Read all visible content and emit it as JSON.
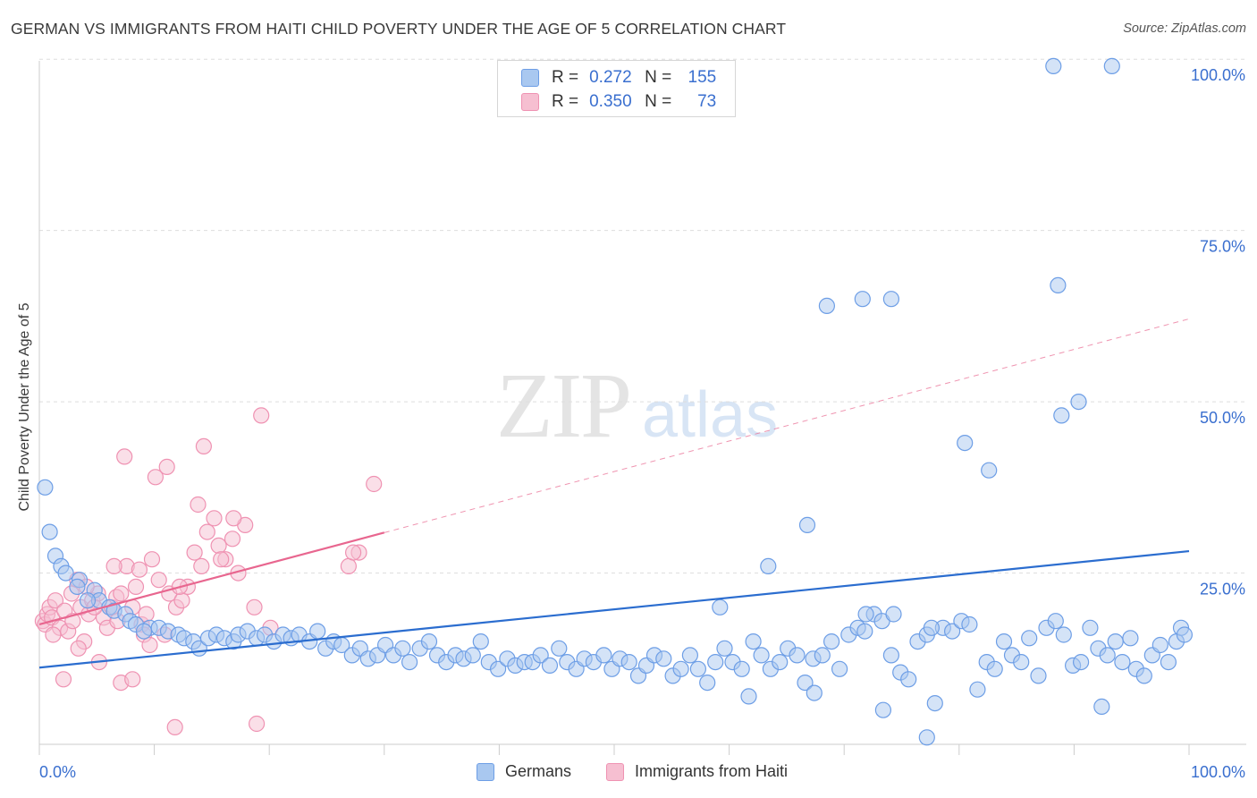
{
  "title": "GERMAN VS IMMIGRANTS FROM HAITI CHILD POVERTY UNDER THE AGE OF 5 CORRELATION CHART",
  "source": "Source: ZipAtlas.com",
  "watermark": {
    "zip": "ZIP",
    "atlas": "atlas"
  },
  "colors": {
    "blue_fill": "#a9c8f0",
    "blue_stroke": "#6d9ee6",
    "blue_line": "#2b6dcf",
    "pink_fill": "#f6bfd1",
    "pink_stroke": "#ef92b2",
    "pink_line": "#e8668f",
    "tick_label": "#3a6fcf",
    "grid": "#dedede"
  },
  "legend_top": {
    "rows": [
      {
        "series": "Germans",
        "r_label": "R =",
        "r_value": "0.272",
        "n_label": "N =",
        "n_value": "155"
      },
      {
        "series": "Immigrants from Haiti",
        "r_label": "R =",
        "r_value": "0.350",
        "n_label": "N =",
        "n_value": "73"
      }
    ]
  },
  "chart_data": {
    "type": "scatter",
    "title": "GERMAN VS IMMIGRANTS FROM HAITI CHILD POVERTY UNDER THE AGE OF 5 CORRELATION CHART",
    "xlabel": "",
    "ylabel": "Child Poverty Under the Age of 5",
    "xlim": [
      0,
      100
    ],
    "ylim": [
      0,
      104
    ],
    "x_tick_labels": [
      "0.0%",
      "100.0%"
    ],
    "y_ticks": [
      25,
      50,
      75,
      100
    ],
    "y_tick_labels": [
      "25.0%",
      "50.0%",
      "75.0%",
      "100.0%"
    ],
    "grid": true,
    "legend_position": "top-center",
    "series": [
      {
        "name": "Germans",
        "color": "#a9c8f0",
        "trendline": {
          "x": [
            0,
            100
          ],
          "y": [
            11.2,
            28.2
          ],
          "style": "solid"
        },
        "points": [
          [
            0.5,
            37.5
          ],
          [
            0.9,
            31
          ],
          [
            1.4,
            27.5
          ],
          [
            1.9,
            26
          ],
          [
            2.3,
            25
          ],
          [
            3.5,
            24
          ],
          [
            3.3,
            23
          ],
          [
            4.8,
            22.5
          ],
          [
            5.2,
            21
          ],
          [
            4.2,
            21
          ],
          [
            6.1,
            20
          ],
          [
            6.5,
            19.5
          ],
          [
            7.5,
            19
          ],
          [
            7.9,
            18
          ],
          [
            8.4,
            17.5
          ],
          [
            9.6,
            17
          ],
          [
            9.1,
            16.5
          ],
          [
            10.4,
            17
          ],
          [
            11.2,
            16.5
          ],
          [
            12.1,
            16
          ],
          [
            12.6,
            15.5
          ],
          [
            13.4,
            15
          ],
          [
            13.9,
            14
          ],
          [
            14.7,
            15.5
          ],
          [
            15.4,
            16
          ],
          [
            16.1,
            15.5
          ],
          [
            16.9,
            15
          ],
          [
            17.3,
            16
          ],
          [
            18.1,
            16.5
          ],
          [
            18.9,
            15.5
          ],
          [
            19.6,
            16
          ],
          [
            20.4,
            15
          ],
          [
            21.2,
            16
          ],
          [
            21.9,
            15.5
          ],
          [
            22.6,
            16
          ],
          [
            23.5,
            15
          ],
          [
            24.2,
            16.5
          ],
          [
            24.9,
            14
          ],
          [
            25.6,
            15
          ],
          [
            26.3,
            14.5
          ],
          [
            27.2,
            13
          ],
          [
            27.9,
            14
          ],
          [
            28.6,
            12.5
          ],
          [
            29.4,
            13
          ],
          [
            30.1,
            14.5
          ],
          [
            30.8,
            13
          ],
          [
            31.6,
            14
          ],
          [
            32.2,
            12
          ],
          [
            33.1,
            14
          ],
          [
            33.9,
            15
          ],
          [
            34.6,
            13
          ],
          [
            35.4,
            12
          ],
          [
            36.2,
            13
          ],
          [
            36.9,
            12.5
          ],
          [
            37.7,
            13
          ],
          [
            38.4,
            15
          ],
          [
            39.1,
            12
          ],
          [
            39.9,
            11
          ],
          [
            40.7,
            12.5
          ],
          [
            41.4,
            11.5
          ],
          [
            42.2,
            12
          ],
          [
            42.9,
            12
          ],
          [
            43.6,
            13
          ],
          [
            44.4,
            11.5
          ],
          [
            45.2,
            14
          ],
          [
            45.9,
            12
          ],
          [
            46.7,
            11
          ],
          [
            47.4,
            12.5
          ],
          [
            48.2,
            12
          ],
          [
            49.1,
            13
          ],
          [
            49.8,
            11
          ],
          [
            50.5,
            12.5
          ],
          [
            51.3,
            12
          ],
          [
            52.1,
            10
          ],
          [
            52.8,
            11.5
          ],
          [
            53.5,
            13
          ],
          [
            54.3,
            12.5
          ],
          [
            55.1,
            10
          ],
          [
            55.8,
            11
          ],
          [
            56.6,
            13
          ],
          [
            57.3,
            11
          ],
          [
            58.1,
            9
          ],
          [
            58.8,
            12
          ],
          [
            59.6,
            14
          ],
          [
            60.3,
            12
          ],
          [
            61.1,
            11
          ],
          [
            62.1,
            15
          ],
          [
            62.8,
            13
          ],
          [
            63.6,
            11
          ],
          [
            64.4,
            12
          ],
          [
            65.1,
            14
          ],
          [
            65.9,
            13
          ],
          [
            66.6,
            9
          ],
          [
            67.3,
            12.5
          ],
          [
            68.1,
            13
          ],
          [
            68.9,
            15
          ],
          [
            69.6,
            11
          ],
          [
            70.4,
            16
          ],
          [
            71.2,
            17
          ],
          [
            71.8,
            16.5
          ],
          [
            72.6,
            19
          ],
          [
            73.3,
            18
          ],
          [
            74.1,
            13
          ],
          [
            74.9,
            10.5
          ],
          [
            75.6,
            9.5
          ],
          [
            76.4,
            15
          ],
          [
            77.2,
            16
          ],
          [
            77.9,
            6
          ],
          [
            78.6,
            17
          ],
          [
            79.4,
            16.5
          ],
          [
            80.2,
            18
          ],
          [
            80.9,
            17.5
          ],
          [
            81.6,
            8
          ],
          [
            82.4,
            12
          ],
          [
            83.1,
            11
          ],
          [
            83.9,
            15
          ],
          [
            84.6,
            13
          ],
          [
            85.4,
            12
          ],
          [
            86.1,
            15.5
          ],
          [
            86.9,
            10
          ],
          [
            87.6,
            17
          ],
          [
            88.4,
            18
          ],
          [
            89.1,
            16
          ],
          [
            89.9,
            11.5
          ],
          [
            90.6,
            12
          ],
          [
            91.4,
            17
          ],
          [
            92.1,
            14
          ],
          [
            92.9,
            13
          ],
          [
            93.6,
            15
          ],
          [
            94.2,
            12
          ],
          [
            94.9,
            15.5
          ],
          [
            95.4,
            11
          ],
          [
            96.1,
            10
          ],
          [
            96.8,
            13
          ],
          [
            97.5,
            14.5
          ],
          [
            98.2,
            12
          ],
          [
            98.9,
            15
          ],
          [
            99.3,
            17
          ],
          [
            99.6,
            16
          ],
          [
            59.2,
            20
          ],
          [
            63.4,
            26
          ],
          [
            66.8,
            32
          ],
          [
            71.9,
            19
          ],
          [
            74.3,
            19
          ],
          [
            77.6,
            17
          ],
          [
            80.5,
            44
          ],
          [
            82.6,
            40
          ],
          [
            88.9,
            48
          ],
          [
            90.4,
            50
          ],
          [
            68.5,
            64
          ],
          [
            71.6,
            65
          ],
          [
            74.1,
            65
          ],
          [
            88.6,
            67
          ],
          [
            88.2,
            99
          ],
          [
            93.3,
            99
          ],
          [
            61.7,
            7
          ],
          [
            67.4,
            7.5
          ],
          [
            73.4,
            5
          ],
          [
            92.4,
            5.5
          ],
          [
            77.2,
            1
          ]
        ]
      },
      {
        "name": "Immigrants from Haiti",
        "color": "#f6bfd1",
        "trendline": {
          "x": [
            0,
            30
          ],
          "y": [
            17.5,
            30.9
          ],
          "style": "solid",
          "extension": {
            "x": [
              30,
              100
            ],
            "y": [
              30.9,
              62.1
            ],
            "style": "dashed"
          }
        },
        "points": [
          [
            0.3,
            18
          ],
          [
            0.5,
            17.5
          ],
          [
            0.7,
            19
          ],
          [
            0.9,
            20
          ],
          [
            1.1,
            18.5
          ],
          [
            1.4,
            21
          ],
          [
            1.8,
            17
          ],
          [
            2.2,
            19.5
          ],
          [
            2.5,
            16.5
          ],
          [
            2.9,
            18
          ],
          [
            3.3,
            24
          ],
          [
            3.6,
            20
          ],
          [
            3.9,
            15
          ],
          [
            4.3,
            19
          ],
          [
            4.6,
            21
          ],
          [
            5.1,
            22
          ],
          [
            5.6,
            18.5
          ],
          [
            5.9,
            17
          ],
          [
            6.3,
            20
          ],
          [
            6.7,
            21.5
          ],
          [
            7.1,
            22
          ],
          [
            7.6,
            26
          ],
          [
            8.1,
            20
          ],
          [
            8.4,
            23
          ],
          [
            8.9,
            17.5
          ],
          [
            9.3,
            19
          ],
          [
            9.8,
            27
          ],
          [
            10.4,
            24
          ],
          [
            10.9,
            16
          ],
          [
            11.3,
            22
          ],
          [
            11.9,
            20
          ],
          [
            12.4,
            21
          ],
          [
            12.9,
            23
          ],
          [
            13.5,
            28
          ],
          [
            14.1,
            26
          ],
          [
            14.6,
            31
          ],
          [
            15.2,
            33
          ],
          [
            15.6,
            29
          ],
          [
            16.2,
            27
          ],
          [
            16.8,
            30
          ],
          [
            17.3,
            25
          ],
          [
            17.9,
            32
          ],
          [
            18.7,
            20
          ],
          [
            19.3,
            48
          ],
          [
            6.5,
            26
          ],
          [
            7.1,
            9
          ],
          [
            7.4,
            42
          ],
          [
            8.1,
            9.5
          ],
          [
            11.8,
            2.5
          ],
          [
            14.3,
            43.5
          ],
          [
            18.9,
            3
          ],
          [
            20.1,
            17
          ],
          [
            27.8,
            28
          ],
          [
            29.1,
            38
          ],
          [
            9.1,
            16
          ],
          [
            5.2,
            12
          ],
          [
            3.4,
            14
          ],
          [
            12.2,
            23
          ],
          [
            13.8,
            35
          ],
          [
            10.1,
            39
          ],
          [
            11.1,
            40.5
          ],
          [
            2.1,
            9.5
          ],
          [
            15.8,
            27
          ],
          [
            16.9,
            33
          ],
          [
            8.7,
            25.5
          ],
          [
            4.1,
            23
          ],
          [
            6.8,
            18
          ],
          [
            9.6,
            14.5
          ],
          [
            26.9,
            26
          ],
          [
            27.3,
            28
          ],
          [
            1.2,
            16
          ],
          [
            2.8,
            22
          ],
          [
            4.8,
            20
          ]
        ]
      }
    ]
  },
  "x_axis_labels": {
    "left": "0.0%",
    "right": "100.0%"
  },
  "legend_bottom": {
    "items": [
      "Germans",
      "Immigrants from Haiti"
    ]
  }
}
